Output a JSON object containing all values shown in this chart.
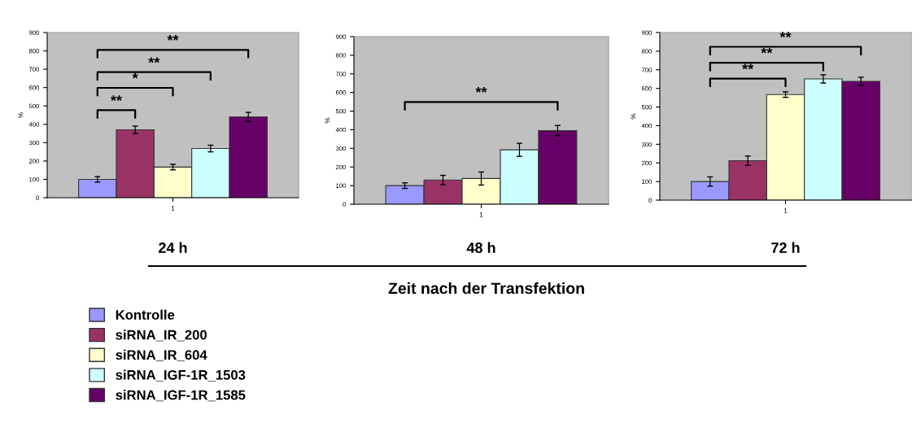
{
  "chart_data": [
    {
      "type": "bar",
      "xlabel": "24 h",
      "ylabel": "%",
      "categories": [
        "1"
      ],
      "ylim": [
        0,
        900
      ],
      "yticks": [
        0,
        100,
        200,
        300,
        400,
        500,
        600,
        700,
        800,
        900
      ],
      "legend": "bottom left",
      "annotations": [
        "**",
        "*",
        "**",
        "**",
        "Zeit nach der Transfektion"
      ],
      "series": [
        {
          "name": "Kontrolle",
          "color": "#9999ff",
          "values": [
            100
          ],
          "errors": [
            15
          ]
        },
        {
          "name": "siRNA_IR_200",
          "color": "#993366",
          "values": [
            370
          ],
          "errors": [
            20
          ]
        },
        {
          "name": "siRNA_IR_604",
          "color": "#ffffcc",
          "values": [
            167
          ],
          "errors": [
            15
          ]
        },
        {
          "name": "siRNA_IGF-1R_1503",
          "color": "#ccffff",
          "values": [
            268
          ],
          "errors": [
            18
          ]
        },
        {
          "name": "siRNA_IGF-1R_1585",
          "color": "#660066",
          "values": [
            440
          ],
          "errors": [
            25
          ]
        }
      ]
    },
    {
      "type": "bar",
      "xlabel": "48 h",
      "ylabel": "%",
      "categories": [
        "1"
      ],
      "ylim": [
        0,
        900
      ],
      "yticks": [
        0,
        100,
        200,
        300,
        400,
        500,
        600,
        700,
        800,
        900
      ],
      "annotations": [
        "**"
      ],
      "series": [
        {
          "color": "#9999ff",
          "values": [
            100
          ],
          "errors": [
            15
          ]
        },
        {
          "color": "#993366",
          "values": [
            130
          ],
          "errors": [
            25
          ]
        },
        {
          "color": "#ffffcc",
          "values": [
            138
          ],
          "errors": [
            35
          ]
        },
        {
          "color": "#ccffff",
          "values": [
            292
          ],
          "errors": [
            35
          ]
        },
        {
          "color": "#660066",
          "values": [
            395
          ],
          "errors": [
            28
          ]
        }
      ]
    },
    {
      "type": "bar",
      "xlabel": "72 h",
      "ylabel": "%",
      "categories": [
        "1"
      ],
      "ylim": [
        0,
        900
      ],
      "yticks": [
        0,
        100,
        200,
        300,
        400,
        500,
        600,
        700,
        800,
        900
      ],
      "annotations": [
        "**",
        "**",
        "**"
      ],
      "series": [
        {
          "color": "#9999ff",
          "values": [
            100
          ],
          "errors": [
            25
          ]
        },
        {
          "color": "#993366",
          "values": [
            212
          ],
          "errors": [
            25
          ]
        },
        {
          "color": "#ffffcc",
          "values": [
            567
          ],
          "errors": [
            15
          ]
        },
        {
          "color": "#ccffff",
          "values": [
            651
          ],
          "errors": [
            22
          ]
        },
        {
          "color": "#660066",
          "values": [
            638
          ],
          "errors": [
            22
          ]
        }
      ]
    }
  ]
}
